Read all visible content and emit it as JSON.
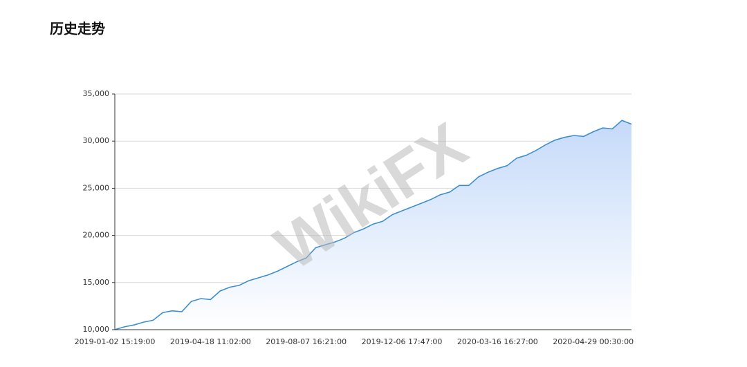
{
  "chart_data": {
    "type": "area",
    "title": "历史走势",
    "watermark": "WikiFX",
    "categories": [
      "2019-01-02 15:19:00",
      null,
      null,
      null,
      null,
      null,
      null,
      null,
      null,
      null,
      "2019-04-18 11:02:00",
      null,
      null,
      null,
      null,
      null,
      null,
      null,
      null,
      null,
      "2019-08-07 16:21:00",
      null,
      null,
      null,
      null,
      null,
      null,
      null,
      null,
      null,
      "2019-12-06 17:47:00",
      null,
      null,
      null,
      null,
      null,
      null,
      null,
      null,
      null,
      "2020-03-16 16:27:00",
      null,
      null,
      null,
      null,
      null,
      null,
      null,
      null,
      null,
      "2020-04-29 00:30:00",
      null,
      null,
      null,
      null
    ],
    "values": [
      10000,
      10300,
      10500,
      10800,
      11000,
      11800,
      12000,
      11900,
      13000,
      13300,
      13200,
      14100,
      14500,
      14700,
      15200,
      15500,
      15800,
      16200,
      16700,
      17200,
      17600,
      18700,
      19000,
      19300,
      19700,
      20300,
      20700,
      21200,
      21500,
      22200,
      22600,
      23000,
      23400,
      23800,
      24300,
      24600,
      25300,
      25300,
      26200,
      26700,
      27100,
      27400,
      28200,
      28500,
      29000,
      29600,
      30100,
      30400,
      30600,
      30500,
      31000,
      31400,
      31300,
      32200,
      31800
    ],
    "color": "#3d8ed1",
    "ylim": [
      10000,
      35000
    ],
    "yticks": [
      {
        "value": 10000,
        "label": "10,000"
      },
      {
        "value": 15000,
        "label": "15,000"
      },
      {
        "value": 20000,
        "label": "20,000"
      },
      {
        "value": 25000,
        "label": "25,000"
      },
      {
        "value": 30000,
        "label": "30,000"
      },
      {
        "value": 35000,
        "label": "35,000"
      }
    ],
    "grid": true
  }
}
